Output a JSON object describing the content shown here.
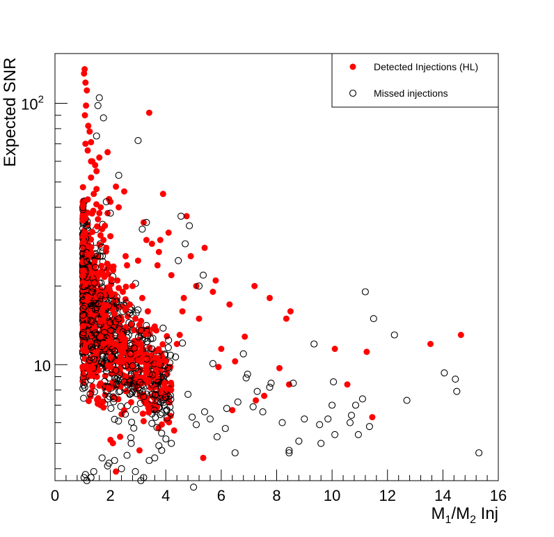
{
  "chart_data": {
    "type": "scatter",
    "title": "",
    "xlabel": "M1/M2 Inj",
    "xlabel_parts": {
      "m": "M",
      "sub1": "1",
      "slash": "/M",
      "sub2": "2",
      "suffix": " Inj"
    },
    "ylabel": "Expected SNR",
    "xlim": [
      0,
      16
    ],
    "ylim": [
      3.6,
      155
    ],
    "y_scale": "log",
    "x_ticks": [
      "0",
      "2",
      "4",
      "6",
      "8",
      "10",
      "12",
      "14",
      "16"
    ],
    "y_ticks": [
      {
        "value": 10,
        "label": "10"
      },
      {
        "value": 100,
        "label": "10",
        "exponent": "2"
      }
    ],
    "grid": false,
    "legend_position": "top-right",
    "colors": {
      "detected": "#ff0000",
      "missed": "#000000"
    },
    "series": [
      {
        "name": "Detected Injections (HL)",
        "marker": "filled-circle",
        "x": [
          1.05,
          1.07,
          1.1,
          1.15,
          1.12,
          1.08,
          1.2,
          1.25,
          1.3,
          1.18,
          1.35,
          1.5,
          1.6,
          1.45,
          1.9,
          2.2,
          2.5,
          2.0,
          3.4,
          1.95,
          2.3,
          3.2,
          3.9,
          4.75,
          5.4,
          4.1,
          3.3,
          4.9,
          3.7,
          3.75,
          3.8,
          3.0,
          3.5,
          4.2,
          4.65,
          5.1,
          4.6,
          5.8,
          5.7,
          6.3,
          5.2,
          4.5,
          4.4,
          7.2,
          7.75,
          8.5,
          8.35,
          6.85,
          6.0,
          6.5,
          5.9,
          8.1,
          8.45,
          7.25,
          7.55,
          10.1,
          11.25,
          13.55,
          14.65,
          10.55,
          11.45,
          5.35,
          4.3,
          6.4,
          2.35,
          2.2,
          3.05,
          1.7,
          1.75,
          1.3,
          1.9,
          2.55,
          2.8,
          3.15,
          2.6,
          1.55,
          2.9,
          3.6,
          1.4,
          1.85,
          2.1,
          2.45,
          2.7,
          3.35,
          2.4,
          1.8,
          1.65,
          2.0,
          2.25,
          3.1,
          1.5,
          1.3,
          1.6,
          1.1
        ],
        "y": [
          130,
          135,
          120,
          112,
          98,
          90,
          82,
          78,
          71,
          66,
          60,
          55,
          62,
          58,
          65,
          48,
          46,
          42,
          92,
          43,
          40,
          35,
          45,
          37,
          28,
          32,
          30,
          26,
          24,
          27,
          30,
          25,
          29,
          22,
          18,
          20,
          16,
          21,
          19,
          17,
          15,
          13,
          12,
          20,
          18,
          16,
          15,
          12.8,
          11.5,
          10.3,
          9.8,
          9.7,
          8.4,
          7.3,
          7.6,
          11.5,
          11.2,
          12,
          13,
          8.4,
          6.3,
          4.4,
          5.6,
          6.7,
          5.3,
          3.9,
          4.7,
          33,
          30,
          52,
          38,
          26,
          20,
          18,
          24,
          36,
          15,
          14,
          45,
          28,
          23,
          19,
          17,
          16,
          13,
          34,
          40,
          31,
          21,
          12,
          47,
          60,
          38,
          70
        ]
      },
      {
        "name": "Missed injections",
        "marker": "open-circle",
        "x": [
          1.6,
          1.55,
          1.75,
          1.5,
          2.3,
          1.85,
          3.0,
          3.3,
          2.0,
          3.15,
          4.55,
          4.85,
          4.7,
          5.2,
          5.35,
          4.45,
          6.8,
          7.8,
          11.2,
          11.5,
          9.35,
          12.25,
          10.0,
          10.1,
          9.55,
          12.7,
          14.05,
          14.45,
          14.5,
          15.3,
          11.1,
          10.85,
          10.65,
          10.05,
          9.85,
          8.6,
          8.45,
          9.0,
          8.8,
          7.75,
          6.9,
          6.6,
          6.2,
          5.6,
          5.4,
          4.95,
          4.8,
          5.0,
          4.2,
          3.85,
          3.4,
          3.6,
          2.9,
          2.6,
          3.1,
          3.2,
          2.4,
          1.9,
          1.3,
          1.05,
          1.1,
          1.15,
          7.5,
          7.15,
          5.85,
          6.15,
          8.2,
          9.6,
          11.35,
          10.7,
          10.95,
          8.45,
          6.5,
          5.1,
          4.0,
          3.75,
          2.75,
          2.15,
          1.95,
          1.7,
          1.4,
          2.5,
          2.8,
          3.5,
          4.35,
          4.6,
          5.7,
          6.95,
          7.3,
          3.9,
          4.1,
          2.2,
          1.25
        ],
        "y": [
          105,
          98,
          88,
          75,
          53,
          42,
          72,
          35,
          38,
          33,
          37,
          34,
          29,
          20,
          22,
          25,
          11,
          8.5,
          19,
          15,
          12,
          13,
          7,
          5.4,
          5.9,
          7.3,
          9.3,
          8.8,
          7.9,
          4.6,
          7.4,
          7,
          6,
          8.6,
          6.2,
          8.5,
          4.7,
          6.2,
          5.1,
          8.2,
          8.9,
          7.2,
          6.8,
          6.2,
          6.6,
          6.3,
          7.7,
          3.4,
          5.0,
          4.7,
          4.3,
          4.4,
          3.9,
          4.5,
          3.6,
          3.7,
          4.0,
          4.1,
          3.7,
          3.7,
          3.8,
          3.6,
          6.6,
          6.9,
          5.3,
          5.7,
          6.0,
          5.0,
          5.8,
          6.4,
          5.4,
          4.6,
          4.6,
          5.9,
          5.2,
          4.9,
          5.0,
          4.3,
          4.2,
          4.4,
          3.9,
          8.6,
          9.9,
          11.5,
          10.7,
          12.1,
          10.1,
          9.2,
          7.9,
          13.8,
          12.4,
          9.5,
          10.4
        ]
      }
    ]
  }
}
